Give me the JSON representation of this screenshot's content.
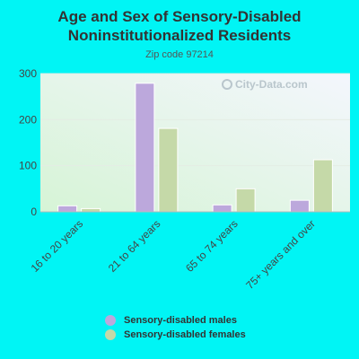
{
  "colors": {
    "background": "#00f5f5",
    "males": "#bca8dc",
    "females": "#c5d9a8"
  },
  "watermark": "City-Data.com",
  "chart_data": {
    "type": "bar",
    "title": "Age and Sex of Sensory-Disabled Noninstitutionalized Residents",
    "subtitle": "Zip code 97214",
    "categories": [
      "16 to 20 years",
      "21 to 64 years",
      "65 to 74 years",
      "75+ years and over"
    ],
    "series": [
      {
        "name": "Sensory-disabled males",
        "values": [
          13,
          279,
          15,
          25
        ]
      },
      {
        "name": "Sensory-disabled females",
        "values": [
          7,
          181,
          50,
          113
        ]
      }
    ],
    "ylim": [
      0,
      300
    ],
    "yticks": [
      0,
      100,
      200,
      300
    ],
    "grid": true,
    "legend_position": "bottom"
  }
}
